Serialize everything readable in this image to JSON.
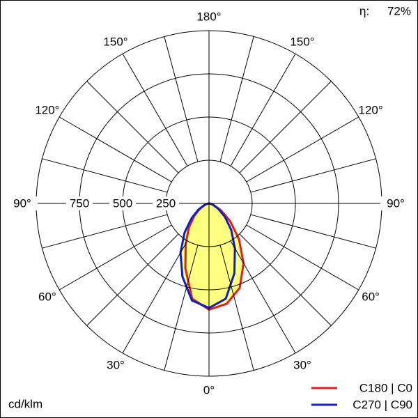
{
  "chart_data": {
    "type": "polar",
    "efficiency_label": "η:",
    "efficiency": "72%",
    "unit": "cd/klm",
    "x": [
      -90,
      -80,
      -70,
      -60,
      -50,
      -40,
      -30,
      -20,
      -10,
      0,
      10,
      20,
      30,
      40,
      50,
      60,
      70,
      80,
      90
    ],
    "series": [
      {
        "name": "C180 | C0",
        "color": "#e02020",
        "values": [
          0,
          8,
          25,
          60,
          110,
          180,
          270,
          400,
          560,
          615,
          590,
          520,
          400,
          270,
          160,
          80,
          30,
          10,
          0
        ]
      },
      {
        "name": "C270 | C90",
        "color": "#1020c0",
        "values": [
          0,
          10,
          30,
          70,
          130,
          220,
          330,
          450,
          570,
          605,
          560,
          430,
          300,
          200,
          120,
          60,
          25,
          8,
          0
        ]
      }
    ],
    "fill_color": "#ffff80",
    "rlim": [
      0,
      1000
    ],
    "rticks": [
      250,
      500,
      750
    ],
    "angle_ticks": [
      {
        "value": 0,
        "label": "0°"
      },
      {
        "value": 30,
        "label": "30°"
      },
      {
        "value": 60,
        "label": "60°"
      },
      {
        "value": 90,
        "label": "90°"
      },
      {
        "value": 120,
        "label": "120°"
      },
      {
        "value": 150,
        "label": "150°"
      },
      {
        "value": 180,
        "label": "180°"
      }
    ]
  }
}
